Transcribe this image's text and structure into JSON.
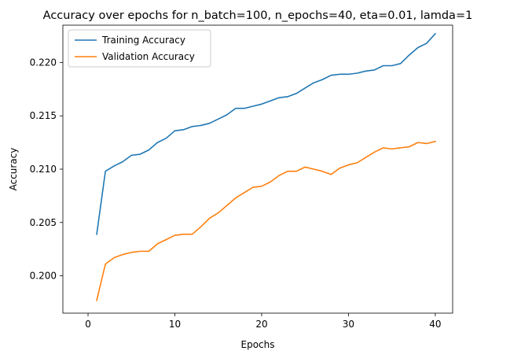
{
  "chart_data": {
    "type": "line",
    "title": "Accuracy over epochs for n_batch=100, n_epochs=40, eta=0.01, lamda=1",
    "xlabel": "Epochs",
    "ylabel": "Accuracy",
    "xlim": [
      -2.9,
      42.0
    ],
    "ylim": [
      0.1965,
      0.2235
    ],
    "xticks": [
      0,
      10,
      20,
      30,
      40
    ],
    "yticks": [
      0.2,
      0.205,
      0.21,
      0.215,
      0.22
    ],
    "ytick_labels": [
      "0.200",
      "0.205",
      "0.210",
      "0.215",
      "0.220"
    ],
    "grid": false,
    "legend_position": "upper-left",
    "x": [
      1,
      2,
      3,
      4,
      5,
      6,
      7,
      8,
      9,
      10,
      11,
      12,
      13,
      14,
      15,
      16,
      17,
      18,
      19,
      20,
      21,
      22,
      23,
      24,
      25,
      26,
      27,
      28,
      29,
      30,
      31,
      32,
      33,
      34,
      35,
      36,
      37,
      38,
      39,
      40
    ],
    "series": [
      {
        "name": "Training Accuracy",
        "color": "#1f77b4",
        "values": [
          0.2039,
          0.2098,
          0.2103,
          0.2107,
          0.2113,
          0.2114,
          0.2118,
          0.2125,
          0.2129,
          0.2136,
          0.2137,
          0.214,
          0.2141,
          0.2143,
          0.2147,
          0.2151,
          0.2157,
          0.2157,
          0.2159,
          0.2161,
          0.2164,
          0.2167,
          0.2168,
          0.2171,
          0.2176,
          0.2181,
          0.2184,
          0.2188,
          0.2189,
          0.2189,
          0.219,
          0.2192,
          0.2193,
          0.2197,
          0.2197,
          0.2199,
          0.2207,
          0.2214,
          0.2218,
          0.2227
        ]
      },
      {
        "name": "Validation Accuracy",
        "color": "#ff7f0e",
        "values": [
          0.1977,
          0.2011,
          0.2017,
          0.202,
          0.2022,
          0.2023,
          0.2023,
          0.203,
          0.2034,
          0.2038,
          0.2039,
          0.2039,
          0.2046,
          0.2054,
          0.2059,
          0.2066,
          0.2073,
          0.2078,
          0.2083,
          0.2084,
          0.2088,
          0.2094,
          0.2098,
          0.2098,
          0.2102,
          0.21,
          0.2098,
          0.2095,
          0.2101,
          0.2104,
          0.2106,
          0.2111,
          0.2116,
          0.212,
          0.2119,
          0.212,
          0.2121,
          0.2125,
          0.2124,
          0.2126
        ]
      }
    ]
  }
}
